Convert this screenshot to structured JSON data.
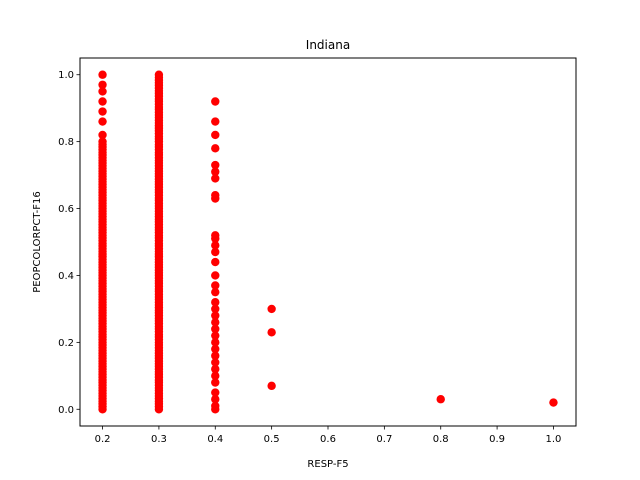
{
  "chart_data": {
    "type": "scatter",
    "title": "Indiana",
    "xlabel": "RESP-F5",
    "ylabel": "PEOPCOLORPCT-F16",
    "xlim": [
      0.16,
      1.04
    ],
    "ylim": [
      -0.05,
      1.05
    ],
    "xticks": [
      0.2,
      0.3,
      0.4,
      0.5,
      0.6,
      0.7,
      0.8,
      0.9,
      1.0
    ],
    "xtick_labels": [
      "0.2",
      "0.3",
      "0.4",
      "0.5",
      "0.6",
      "0.7",
      "0.8",
      "0.9",
      "1.0"
    ],
    "yticks": [
      0.0,
      0.2,
      0.4,
      0.6,
      0.8,
      1.0
    ],
    "ytick_labels": [
      "0.0",
      "0.2",
      "0.4",
      "0.6",
      "0.8",
      "1.0"
    ],
    "marker_color": "#ff0000",
    "series": [
      {
        "name": "points",
        "columns": [
          {
            "x": 0.2,
            "dense_from": 0.0,
            "dense_to": 0.8,
            "extra_y": [
              0.82,
              0.86,
              0.89,
              0.92,
              0.95,
              0.97,
              1.0
            ]
          },
          {
            "x": 0.3,
            "dense_from": 0.0,
            "dense_to": 1.0,
            "extra_y": []
          },
          {
            "x": 0.4,
            "dense_from": 0.0,
            "dense_to": 0.0,
            "extra_y": [
              0.0,
              0.01,
              0.03,
              0.05,
              0.08,
              0.1,
              0.12,
              0.14,
              0.16,
              0.18,
              0.2,
              0.22,
              0.24,
              0.26,
              0.28,
              0.3,
              0.32,
              0.35,
              0.37,
              0.4,
              0.44,
              0.47,
              0.49,
              0.51,
              0.52,
              0.63,
              0.64,
              0.69,
              0.71,
              0.73,
              0.78,
              0.82,
              0.86,
              0.92
            ]
          },
          {
            "x": 0.5,
            "dense_from": 0.0,
            "dense_to": 0.0,
            "extra_y": [
              0.07,
              0.23,
              0.3
            ]
          },
          {
            "x": 0.8,
            "dense_from": 0.0,
            "dense_to": 0.0,
            "extra_y": [
              0.03
            ]
          },
          {
            "x": 1.0,
            "dense_from": 0.0,
            "dense_to": 0.0,
            "extra_y": [
              0.02
            ]
          }
        ]
      }
    ]
  }
}
